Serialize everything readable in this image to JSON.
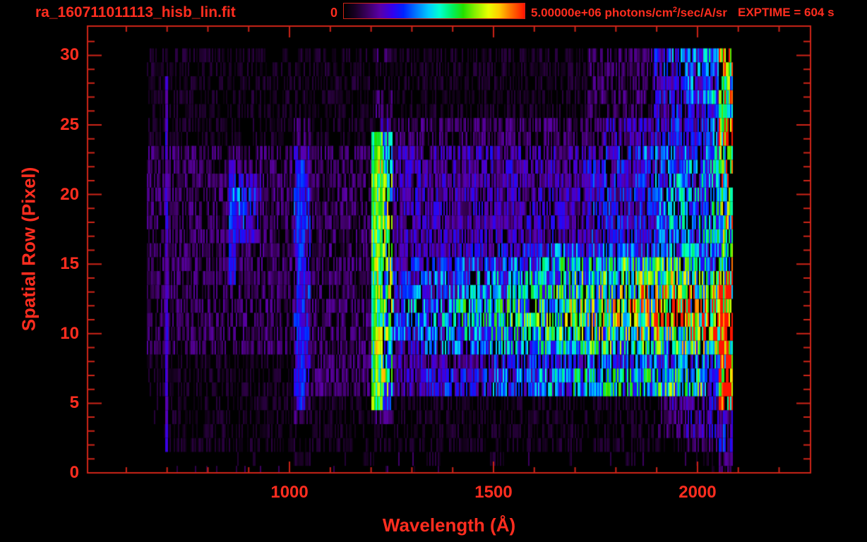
{
  "header": {
    "title": "ra_160711011113_hisb_lin.fit",
    "exptime": "EXPTIME = 604 s",
    "colorbar": {
      "min_label": "0",
      "max_value": "5.00000e+06",
      "units_prefix": "photons/cm",
      "units_sup": "2",
      "units_suffix": "/sec/A/sr"
    }
  },
  "colors": {
    "background": "#000000",
    "axis": "#cf2418",
    "label": "#ff2d1f"
  },
  "chart_data": {
    "type": "heatmap",
    "title": "ra_160711011113_hisb_lin.fit",
    "xlabel": "Wavelength (Å)",
    "ylabel": "Spatial Row (Pixel)",
    "x_range": [
      505,
      2277
    ],
    "y_range": [
      0,
      32.1
    ],
    "x_major_ticks": [
      1000,
      1500,
      2000
    ],
    "x_minor_tick_step": 100,
    "x_minor_tick_min": 600,
    "x_minor_tick_max": 2200,
    "y_major_ticks": [
      0,
      5,
      10,
      15,
      20,
      25,
      30
    ],
    "y_minor_tick_step": 1,
    "grid": false,
    "colorbar": {
      "min": 0,
      "max": 5000000,
      "units": "photons/cm^2/sec/A/sr"
    },
    "colormap_stops": [
      [
        0.0,
        "#000000"
      ],
      [
        0.06,
        "#170021"
      ],
      [
        0.13,
        "#3c0060"
      ],
      [
        0.2,
        "#5a00a8"
      ],
      [
        0.27,
        "#3300ee"
      ],
      [
        0.33,
        "#0022ff"
      ],
      [
        0.4,
        "#0077ff"
      ],
      [
        0.47,
        "#00ccff"
      ],
      [
        0.53,
        "#00ffd0"
      ],
      [
        0.6,
        "#00f060"
      ],
      [
        0.66,
        "#22e000"
      ],
      [
        0.72,
        "#7fee00"
      ],
      [
        0.8,
        "#eaff00"
      ],
      [
        0.86,
        "#ffcc00"
      ],
      [
        0.92,
        "#ff7700"
      ],
      [
        1.0,
        "#ff1500"
      ]
    ],
    "data_wavelength_start": 650,
    "data_wavelength_end": 2085,
    "bin_width_angstrom": 40,
    "bin_count": 36,
    "row_count": 31,
    "row_order": "bottom-to-top",
    "value_scale_max": 15,
    "rows_rle": [
      [
        [
          0,
          35
        ],
        [
          2,
          1
        ]
      ],
      [
        [
          0,
          9
        ],
        [
          1,
          1
        ],
        [
          0,
          3
        ],
        [
          1,
          1
        ],
        [
          0,
          3
        ],
        [
          1,
          1
        ],
        [
          0,
          3
        ],
        [
          1,
          1
        ],
        [
          0,
          3
        ],
        [
          1,
          1
        ],
        [
          0,
          3
        ],
        [
          1,
          1
        ],
        [
          0,
          4
        ],
        [
          1,
          1
        ],
        [
          3,
          1
        ]
      ],
      [
        [
          0,
          1
        ],
        [
          1,
          30
        ],
        [
          1,
          2
        ],
        [
          2,
          2
        ],
        [
          4,
          1
        ]
      ],
      [
        [
          0,
          1
        ],
        [
          1,
          30
        ],
        [
          2,
          2
        ],
        [
          3,
          2
        ],
        [
          4,
          1
        ]
      ],
      [
        [
          0,
          1
        ],
        [
          1,
          8
        ],
        [
          2,
          1
        ],
        [
          1,
          4
        ],
        [
          2,
          1
        ],
        [
          1,
          16
        ],
        [
          2,
          2
        ],
        [
          3,
          3
        ]
      ],
      [
        [
          0,
          1
        ],
        [
          1,
          8
        ],
        [
          2,
          1
        ],
        [
          1,
          4
        ],
        [
          7,
          1
        ],
        [
          1,
          16
        ],
        [
          2,
          1
        ],
        [
          3,
          2
        ],
        [
          4,
          1
        ],
        [
          14,
          1
        ]
      ],
      [
        [
          1,
          9
        ],
        [
          3,
          1
        ],
        [
          2,
          4
        ],
        [
          9,
          1
        ],
        [
          3,
          2
        ],
        [
          4,
          4
        ],
        [
          5,
          3
        ],
        [
          6,
          2
        ],
        [
          7,
          5
        ],
        [
          8,
          3
        ],
        [
          5,
          1
        ],
        [
          13,
          1
        ]
      ],
      [
        [
          1,
          9
        ],
        [
          4,
          1
        ],
        [
          2,
          4
        ],
        [
          9,
          1
        ],
        [
          3,
          2
        ],
        [
          4,
          4
        ],
        [
          5,
          3
        ],
        [
          6,
          2
        ],
        [
          7,
          5
        ],
        [
          8,
          3
        ],
        [
          5,
          1
        ],
        [
          13,
          1
        ]
      ],
      [
        [
          1,
          9
        ],
        [
          3,
          1
        ],
        [
          2,
          4
        ],
        [
          8,
          1
        ],
        [
          3,
          6
        ],
        [
          4,
          5
        ],
        [
          5,
          5
        ],
        [
          6,
          4
        ],
        [
          12,
          1
        ]
      ],
      [
        [
          2,
          9
        ],
        [
          4,
          1
        ],
        [
          2,
          4
        ],
        [
          9,
          1
        ],
        [
          4,
          2
        ],
        [
          5,
          4
        ],
        [
          6,
          3
        ],
        [
          7,
          3
        ],
        [
          8,
          5
        ],
        [
          9,
          3
        ],
        [
          14,
          1
        ]
      ],
      [
        [
          2,
          9
        ],
        [
          4,
          1
        ],
        [
          2,
          4
        ],
        [
          9,
          1
        ],
        [
          5,
          3
        ],
        [
          6,
          3
        ],
        [
          7,
          3
        ],
        [
          8,
          3
        ],
        [
          9,
          3
        ],
        [
          10,
          2
        ],
        [
          11,
          2
        ],
        [
          12,
          1
        ],
        [
          15,
          1
        ]
      ],
      [
        [
          2,
          9
        ],
        [
          4,
          1
        ],
        [
          2,
          4
        ],
        [
          9,
          1
        ],
        [
          5,
          1
        ],
        [
          6,
          3
        ],
        [
          7,
          3
        ],
        [
          8,
          3
        ],
        [
          9,
          2
        ],
        [
          10,
          2
        ],
        [
          11,
          2
        ],
        [
          12,
          2
        ],
        [
          13,
          2
        ],
        [
          15,
          1
        ]
      ],
      [
        [
          2,
          9
        ],
        [
          4,
          1
        ],
        [
          2,
          4
        ],
        [
          9,
          1
        ],
        [
          5,
          1
        ],
        [
          6,
          3
        ],
        [
          7,
          3
        ],
        [
          8,
          3
        ],
        [
          9,
          2
        ],
        [
          10,
          2
        ],
        [
          11,
          2
        ],
        [
          12,
          4
        ],
        [
          15,
          1
        ]
      ],
      [
        [
          2,
          9
        ],
        [
          4,
          1
        ],
        [
          2,
          4
        ],
        [
          9,
          1
        ],
        [
          4,
          1
        ],
        [
          5,
          3
        ],
        [
          6,
          3
        ],
        [
          7,
          3
        ],
        [
          8,
          2
        ],
        [
          9,
          3
        ],
        [
          10,
          2
        ],
        [
          11,
          3
        ],
        [
          14,
          1
        ]
      ],
      [
        [
          2,
          9
        ],
        [
          3,
          1
        ],
        [
          2,
          4
        ],
        [
          9,
          1
        ],
        [
          4,
          2
        ],
        [
          5,
          3
        ],
        [
          6,
          3
        ],
        [
          7,
          3
        ],
        [
          8,
          3
        ],
        [
          9,
          5
        ],
        [
          8,
          1
        ],
        [
          12,
          1
        ]
      ],
      [
        [
          2,
          9
        ],
        [
          3,
          1
        ],
        [
          2,
          4
        ],
        [
          9,
          1
        ],
        [
          3,
          1
        ],
        [
          4,
          3
        ],
        [
          5,
          3
        ],
        [
          6,
          3
        ],
        [
          7,
          4
        ],
        [
          8,
          4
        ],
        [
          7,
          1
        ],
        [
          6,
          1
        ],
        [
          10,
          1
        ]
      ],
      [
        [
          2,
          9
        ],
        [
          3,
          1
        ],
        [
          2,
          4
        ],
        [
          8,
          1
        ],
        [
          3,
          4
        ],
        [
          4,
          6
        ],
        [
          5,
          7
        ],
        [
          6,
          2
        ],
        [
          5,
          1
        ],
        [
          8,
          1
        ]
      ],
      [
        [
          2,
          5
        ],
        [
          4,
          1
        ],
        [
          3,
          1
        ],
        [
          2,
          2
        ],
        [
          4,
          1
        ],
        [
          2,
          4
        ],
        [
          9,
          1
        ],
        [
          3,
          12
        ],
        [
          4,
          4
        ],
        [
          5,
          1
        ],
        [
          6,
          2
        ],
        [
          7,
          1
        ],
        [
          9,
          1
        ]
      ],
      [
        [
          2,
          5
        ],
        [
          4,
          1
        ],
        [
          3,
          1
        ],
        [
          2,
          2
        ],
        [
          4,
          1
        ],
        [
          2,
          4
        ],
        [
          9,
          1
        ],
        [
          3,
          12
        ],
        [
          4,
          4
        ],
        [
          5,
          1
        ],
        [
          6,
          2
        ],
        [
          7,
          1
        ],
        [
          10,
          1
        ]
      ],
      [
        [
          2,
          5
        ],
        [
          5,
          1
        ],
        [
          4,
          1
        ],
        [
          2,
          2
        ],
        [
          4,
          1
        ],
        [
          2,
          4
        ],
        [
          9,
          1
        ],
        [
          3,
          12
        ],
        [
          4,
          4
        ],
        [
          6,
          2
        ],
        [
          5,
          1
        ],
        [
          7,
          1
        ],
        [
          9,
          1
        ]
      ],
      [
        [
          2,
          5
        ],
        [
          5,
          1
        ],
        [
          4,
          1
        ],
        [
          2,
          2
        ],
        [
          4,
          1
        ],
        [
          2,
          4
        ],
        [
          9,
          1
        ],
        [
          3,
          12
        ],
        [
          4,
          4
        ],
        [
          5,
          1
        ],
        [
          6,
          3
        ],
        [
          8,
          1
        ]
      ],
      [
        [
          2,
          5
        ],
        [
          4,
          1
        ],
        [
          3,
          1
        ],
        [
          2,
          2
        ],
        [
          3,
          1
        ],
        [
          2,
          4
        ],
        [
          9,
          1
        ],
        [
          3,
          12
        ],
        [
          4,
          4
        ],
        [
          5,
          1
        ],
        [
          6,
          1
        ],
        [
          5,
          1
        ],
        [
          6,
          1
        ],
        [
          11,
          1
        ]
      ],
      [
        [
          2,
          9
        ],
        [
          3,
          1
        ],
        [
          2,
          4
        ],
        [
          9,
          1
        ],
        [
          3,
          12
        ],
        [
          4,
          4
        ],
        [
          5,
          2
        ],
        [
          6,
          2
        ],
        [
          11,
          1
        ]
      ],
      [
        [
          2,
          9
        ],
        [
          3,
          1
        ],
        [
          2,
          4
        ],
        [
          8,
          1
        ],
        [
          3,
          13
        ],
        [
          4,
          2
        ],
        [
          5,
          4
        ],
        [
          6,
          1
        ],
        [
          9,
          1
        ]
      ],
      [
        [
          1,
          9
        ],
        [
          2,
          1
        ],
        [
          1,
          4
        ],
        [
          6,
          1
        ],
        [
          2,
          13
        ],
        [
          3,
          3
        ],
        [
          4,
          2
        ],
        [
          5,
          2
        ],
        [
          13,
          1
        ]
      ],
      [
        [
          1,
          9
        ],
        [
          2,
          1
        ],
        [
          1,
          4
        ],
        [
          3,
          1
        ],
        [
          2,
          13
        ],
        [
          3,
          3
        ],
        [
          4,
          3
        ],
        [
          5,
          1
        ],
        [
          14,
          1
        ]
      ],
      [
        [
          1,
          14
        ],
        [
          2,
          1
        ],
        [
          1,
          12
        ],
        [
          2,
          4
        ],
        [
          3,
          1
        ],
        [
          4,
          3
        ],
        [
          7,
          1
        ]
      ],
      [
        [
          1,
          14
        ],
        [
          2,
          1
        ],
        [
          1,
          12
        ],
        [
          2,
          4
        ],
        [
          4,
          1
        ],
        [
          5,
          2
        ],
        [
          6,
          1
        ],
        [
          12,
          1
        ]
      ],
      [
        [
          1,
          27
        ],
        [
          2,
          4
        ],
        [
          3,
          1
        ],
        [
          4,
          1
        ],
        [
          5,
          1
        ],
        [
          4,
          1
        ],
        [
          8,
          1
        ]
      ],
      [
        [
          1,
          27
        ],
        [
          2,
          4
        ],
        [
          4,
          2
        ],
        [
          5,
          2
        ],
        [
          14,
          1
        ]
      ],
      [
        [
          1,
          14
        ],
        [
          2,
          1
        ],
        [
          1,
          12
        ],
        [
          2,
          4
        ],
        [
          4,
          1
        ],
        [
          5,
          1
        ],
        [
          6,
          2
        ],
        [
          11,
          1
        ]
      ]
    ],
    "spectral_lines": [
      {
        "name": "emission-line-1216",
        "wavelength": 1213,
        "row_min": 5,
        "row_max": 24,
        "intensity": 0.62,
        "width_angstrom": 26
      },
      {
        "name": "emission-line-1026",
        "wavelength": 1026,
        "row_min": 5,
        "row_max": 22,
        "intensity": 0.3,
        "width_angstrom": 18
      },
      {
        "name": "emission-line-857",
        "wavelength": 857,
        "row_min": 14,
        "row_max": 22,
        "intensity": 0.27,
        "width_angstrom": 16
      },
      {
        "name": "emission-line-697",
        "wavelength": 697,
        "row_min": 2,
        "row_max": 28,
        "intensity": 0.24,
        "width_angstrom": 8
      }
    ]
  }
}
